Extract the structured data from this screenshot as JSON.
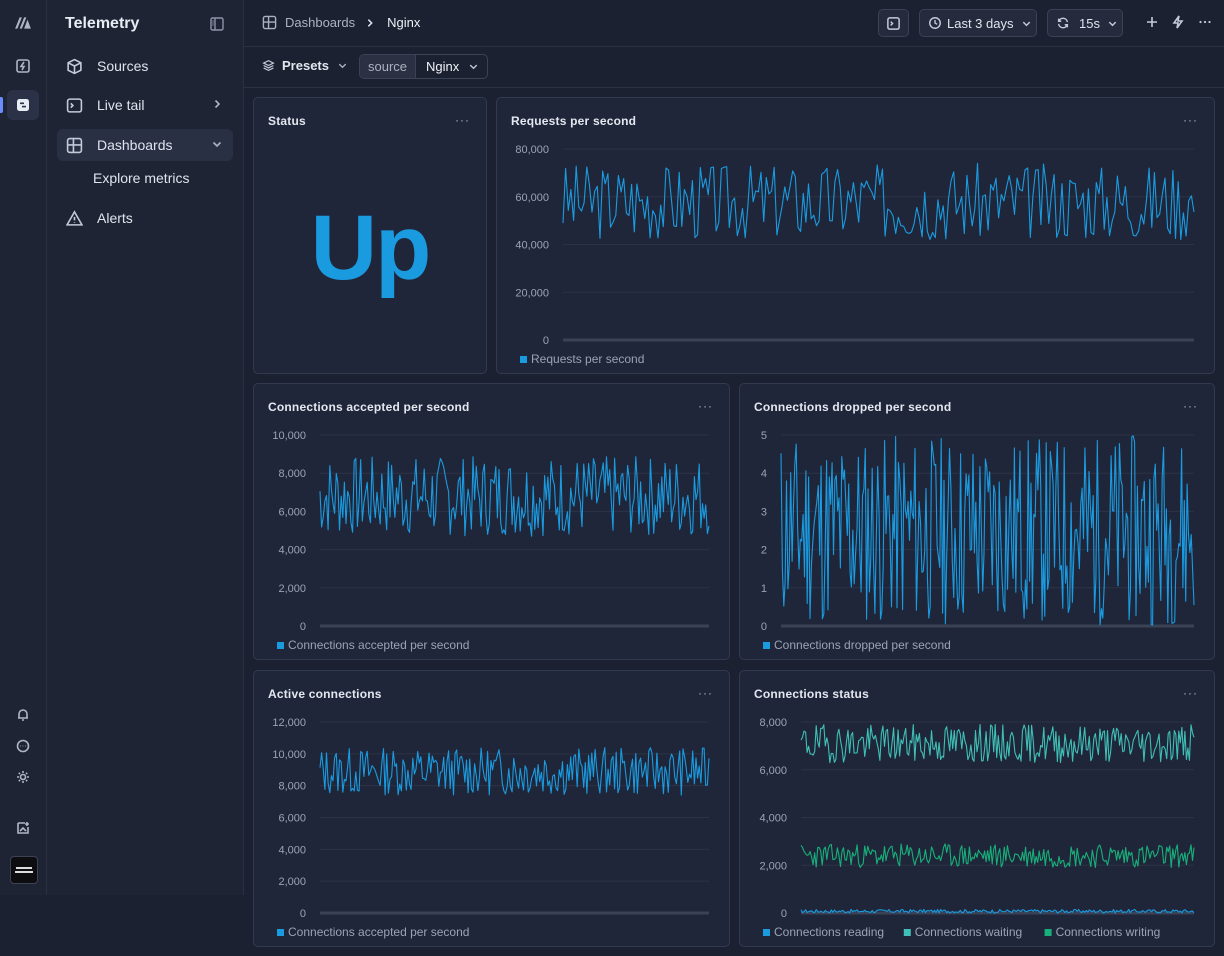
{
  "app": {
    "title": "Telemetry",
    "logo_icon": "logo-icon"
  },
  "rail": {
    "icons": [
      "logo-icon",
      "bolt-icon",
      "telemetry-icon",
      "bell-icon",
      "chat-icon",
      "sun-icon",
      "picture-icon",
      "avatar"
    ]
  },
  "sidebar": {
    "items": [
      {
        "label": "Sources",
        "icon": "cube-icon"
      },
      {
        "label": "Live tail",
        "icon": "terminal-icon"
      },
      {
        "label": "Dashboards",
        "icon": "dashboard-icon"
      },
      {
        "label": "Alerts",
        "icon": "warning-icon"
      }
    ],
    "sub_items": [
      {
        "label": "Explore metrics"
      }
    ]
  },
  "breadcrumb": {
    "parent": "Dashboards",
    "current": "Nginx"
  },
  "toolbar": {
    "time_range": "Last 3 days",
    "refresh": "15s"
  },
  "filters": {
    "presets_label": "Presets",
    "source_key": "source",
    "source_value": "Nginx"
  },
  "colors": {
    "accent": "#1a9be0",
    "teal": "#3fbfb5",
    "green": "#17b07a"
  },
  "panels": {
    "status": {
      "title": "Status",
      "value": "Up"
    },
    "rps": {
      "title": "Requests per second"
    },
    "accepted": {
      "title": "Connections accepted per second"
    },
    "dropped": {
      "title": "Connections dropped per second"
    },
    "active": {
      "title": "Active connections"
    },
    "conn_status": {
      "title": "Connections status"
    }
  },
  "chart_data": [
    {
      "id": "rps",
      "type": "line",
      "title": "Requests per second",
      "ylim": [
        0,
        80000
      ],
      "yticks": [
        "80,000",
        "60,000",
        "40,000",
        "20,000",
        "0"
      ],
      "ytick_values": [
        80000,
        60000,
        40000,
        20000,
        0
      ],
      "series": [
        {
          "name": "Requests per second",
          "color": "#1a9be0",
          "min": 42000,
          "max": 74000,
          "seed": 3,
          "n": 240
        }
      ]
    },
    {
      "id": "accepted",
      "type": "line",
      "title": "Connections accepted per second",
      "ylim": [
        0,
        10000
      ],
      "yticks": [
        "10,000",
        "8,000",
        "6,000",
        "4,000",
        "2,000",
        "0"
      ],
      "ytick_values": [
        10000,
        8000,
        6000,
        4000,
        2000,
        0
      ],
      "series": [
        {
          "name": "Connections accepted per second",
          "color": "#1a9be0",
          "min": 4700,
          "max": 8900,
          "seed": 7,
          "n": 240
        }
      ]
    },
    {
      "id": "dropped",
      "type": "line",
      "title": "Connections dropped per second",
      "ylim": [
        0,
        5
      ],
      "yticks": [
        "5",
        "4",
        "3",
        "2",
        "1",
        "0"
      ],
      "ytick_values": [
        5,
        4,
        3,
        2,
        1,
        0
      ],
      "series": [
        {
          "name": "Connections dropped per second",
          "color": "#1a9be0",
          "min": 0,
          "max": 5,
          "seed": 11,
          "n": 300
        }
      ]
    },
    {
      "id": "active",
      "type": "line",
      "title": "Active connections",
      "ylim": [
        0,
        12000
      ],
      "yticks": [
        "12,000",
        "10,000",
        "8,000",
        "6,000",
        "4,000",
        "2,000",
        "0"
      ],
      "ytick_values": [
        12000,
        10000,
        8000,
        6000,
        4000,
        2000,
        0
      ],
      "series": [
        {
          "name": "Connections accepted per second",
          "color": "#1a9be0",
          "min": 7400,
          "max": 10400,
          "seed": 13,
          "n": 240
        }
      ]
    },
    {
      "id": "conn_status",
      "type": "line",
      "title": "Connections status",
      "ylim": [
        0,
        8000
      ],
      "yticks": [
        "8,000",
        "6,000",
        "4,000",
        "2,000",
        "0"
      ],
      "ytick_values": [
        8000,
        6000,
        4000,
        2000,
        0
      ],
      "series": [
        {
          "name": "Connections reading",
          "color": "#1a9be0",
          "min": 0,
          "max": 150,
          "seed": 17,
          "n": 260
        },
        {
          "name": "Connections waiting",
          "color": "#3fbfb5",
          "min": 6300,
          "max": 7900,
          "seed": 19,
          "n": 260
        },
        {
          "name": "Connections writing",
          "color": "#17b07a",
          "min": 1900,
          "max": 2900,
          "seed": 23,
          "n": 260
        }
      ]
    }
  ]
}
